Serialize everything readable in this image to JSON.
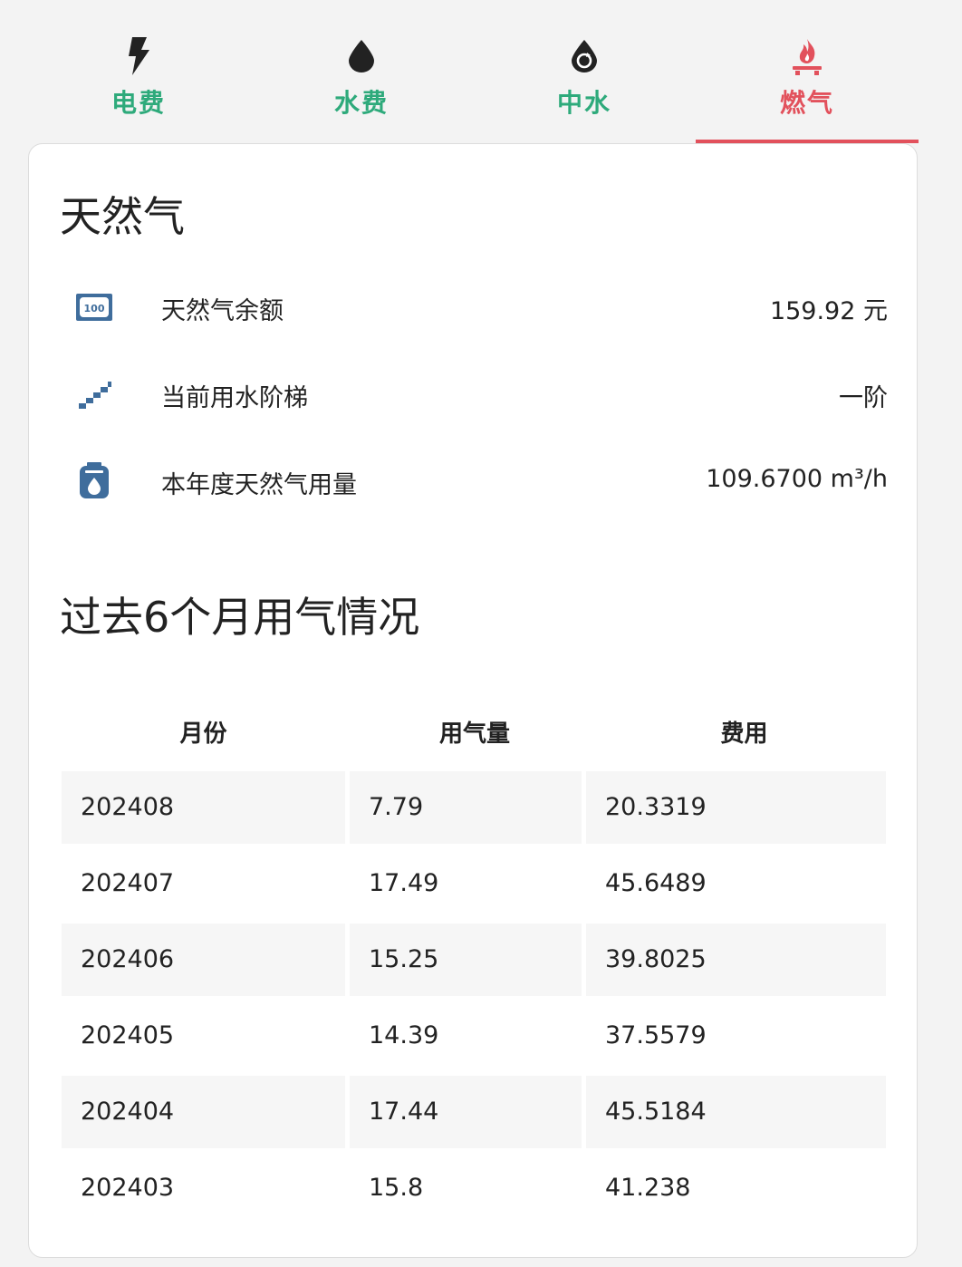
{
  "tabs": [
    {
      "label": "电费",
      "icon": "lightning-icon"
    },
    {
      "label": "水费",
      "icon": "water-drop-icon"
    },
    {
      "label": "中水",
      "icon": "recycled-water-icon"
    },
    {
      "label": "燃气",
      "icon": "gas-flame-icon",
      "active": true
    }
  ],
  "colors": {
    "accent_green": "#2eaa7b",
    "accent_red": "#e2515c",
    "icon_blue": "#3f6d9c"
  },
  "card": {
    "title": "天然气",
    "rows": [
      {
        "icon": "banknote-icon",
        "label": "天然气余额",
        "value": "159.92 元"
      },
      {
        "icon": "stairs-icon",
        "label": "当前用水阶梯",
        "value": "一阶"
      },
      {
        "icon": "meter-icon",
        "label": "本年度天然气用量",
        "value": "109.6700 m³/h"
      }
    ],
    "history_title": "过去6个月用气情况",
    "table": {
      "headers": [
        "月份",
        "用气量",
        "费用"
      ],
      "rows": [
        [
          "202408",
          "7.79",
          "20.3319"
        ],
        [
          "202407",
          "17.49",
          "45.6489"
        ],
        [
          "202406",
          "15.25",
          "39.8025"
        ],
        [
          "202405",
          "14.39",
          "37.5579"
        ],
        [
          "202404",
          "17.44",
          "45.5184"
        ],
        [
          "202403",
          "15.8",
          "41.238"
        ]
      ]
    }
  }
}
